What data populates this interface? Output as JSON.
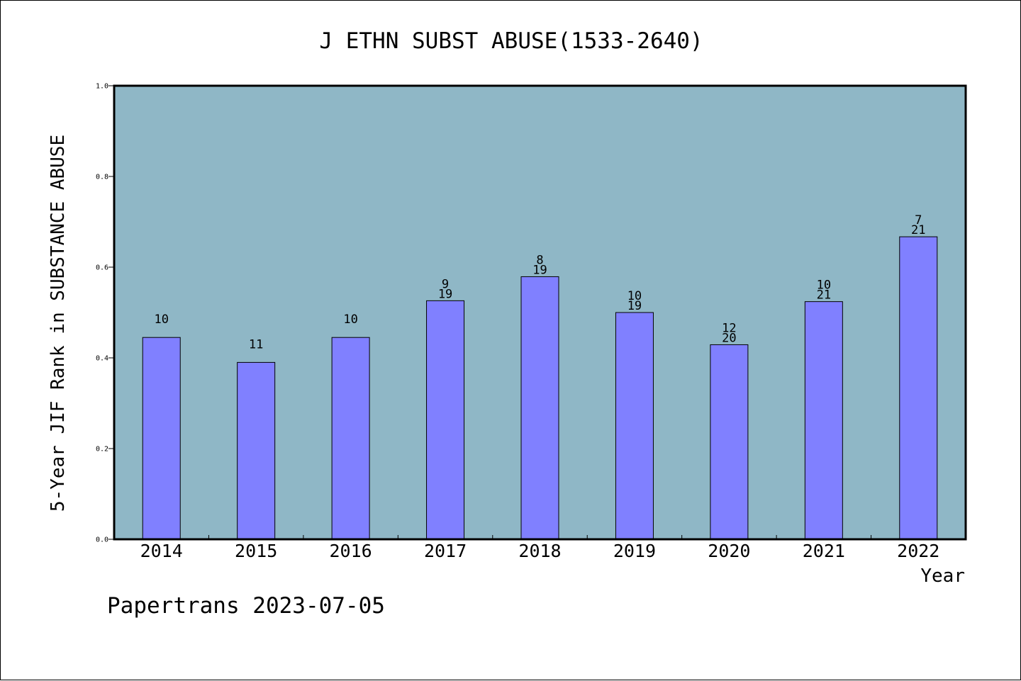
{
  "chart_data": {
    "type": "bar",
    "title": "J ETHN SUBST ABUSE(1533-2640)",
    "xlabel": "Year",
    "ylabel": "5-Year JIF Rank in SUBSTANCE ABUSE",
    "ylim": [
      0.0,
      1.0
    ],
    "yticks": [
      "0.0",
      "0.2",
      "0.4",
      "0.6",
      "0.8",
      "1.0"
    ],
    "categories": [
      "2014",
      "2015",
      "2016",
      "2017",
      "2018",
      "2019",
      "2020",
      "2021",
      "2022"
    ],
    "values": [
      0.445,
      0.39,
      0.445,
      0.526,
      0.579,
      0.5,
      0.429,
      0.524,
      0.667
    ],
    "rank_labels": [
      "10",
      "11",
      "10",
      "9",
      "8",
      "10",
      "12",
      "10",
      "7"
    ],
    "total_labels": [
      "",
      "",
      "",
      "19",
      "19",
      "19",
      "20",
      "21",
      "21"
    ],
    "colors": {
      "plot_background": "#8fb7c6",
      "bar": "#8080ff",
      "bar_edge": "#000000"
    },
    "grid": false,
    "legend": "none"
  },
  "footer": {
    "text": "Papertrans 2023-07-05"
  }
}
